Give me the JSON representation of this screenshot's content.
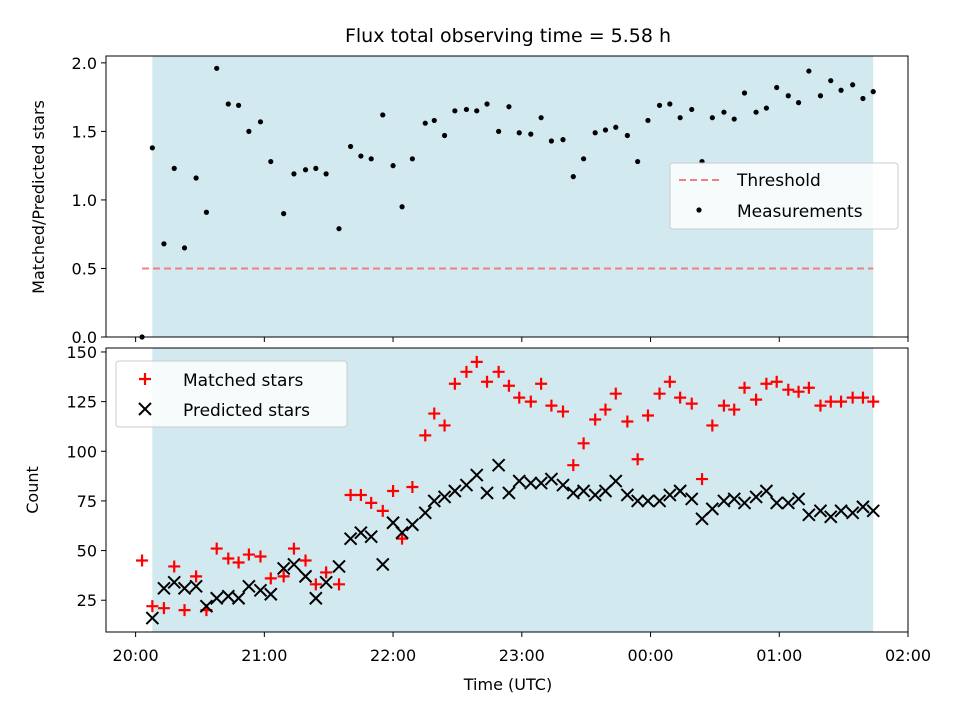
{
  "title": "Flux total observing time = 5.58 h",
  "chart_data": [
    {
      "type": "scatter",
      "panel": "top",
      "ylabel": "Matched/Predicted stars",
      "ylim": [
        0,
        2.05
      ],
      "yticks": [
        0,
        0.5,
        1.0,
        1.5,
        2.0
      ],
      "ytick_labels": [
        "0.0",
        "0.5",
        "1.0",
        "1.5",
        "2.0"
      ],
      "shaded_span": [
        20.13,
        25.73
      ],
      "threshold": {
        "name": "Threshold",
        "y": 0.5,
        "x": [
          20.05,
          25.73
        ],
        "color": "#f08080"
      },
      "legend": {
        "placement": "center-right",
        "entries": [
          "Threshold",
          "Measurements"
        ]
      },
      "series": [
        {
          "name": "Measurements",
          "marker": "dot",
          "color": "#000000",
          "points": [
            [
              20.05,
              0.0
            ],
            [
              20.13,
              1.38
            ],
            [
              20.22,
              0.68
            ],
            [
              20.3,
              1.23
            ],
            [
              20.38,
              0.65
            ],
            [
              20.47,
              1.16
            ],
            [
              20.55,
              0.91
            ],
            [
              20.63,
              1.96
            ],
            [
              20.72,
              1.7
            ],
            [
              20.8,
              1.69
            ],
            [
              20.88,
              1.5
            ],
            [
              20.97,
              1.57
            ],
            [
              21.05,
              1.28
            ],
            [
              21.15,
              0.9
            ],
            [
              21.23,
              1.19
            ],
            [
              21.32,
              1.22
            ],
            [
              21.4,
              1.23
            ],
            [
              21.48,
              1.19
            ],
            [
              21.58,
              0.79
            ],
            [
              21.67,
              1.39
            ],
            [
              21.75,
              1.32
            ],
            [
              21.83,
              1.3
            ],
            [
              21.92,
              1.62
            ],
            [
              22.0,
              1.25
            ],
            [
              22.07,
              0.95
            ],
            [
              22.15,
              1.3
            ],
            [
              22.25,
              1.56
            ],
            [
              22.32,
              1.58
            ],
            [
              22.4,
              1.47
            ],
            [
              22.48,
              1.65
            ],
            [
              22.57,
              1.66
            ],
            [
              22.65,
              1.65
            ],
            [
              22.73,
              1.7
            ],
            [
              22.82,
              1.5
            ],
            [
              22.9,
              1.68
            ],
            [
              22.98,
              1.49
            ],
            [
              23.07,
              1.48
            ],
            [
              23.15,
              1.6
            ],
            [
              23.23,
              1.43
            ],
            [
              23.32,
              1.44
            ],
            [
              23.4,
              1.17
            ],
            [
              23.48,
              1.3
            ],
            [
              23.57,
              1.49
            ],
            [
              23.65,
              1.51
            ],
            [
              23.73,
              1.53
            ],
            [
              23.82,
              1.47
            ],
            [
              23.9,
              1.28
            ],
            [
              23.98,
              1.58
            ],
            [
              24.07,
              1.69
            ],
            [
              24.15,
              1.7
            ],
            [
              24.23,
              1.6
            ],
            [
              24.32,
              1.66
            ],
            [
              24.4,
              1.28
            ],
            [
              24.48,
              1.6
            ],
            [
              24.57,
              1.64
            ],
            [
              24.65,
              1.59
            ],
            [
              24.73,
              1.78
            ],
            [
              24.82,
              1.64
            ],
            [
              24.9,
              1.67
            ],
            [
              24.98,
              1.82
            ],
            [
              25.07,
              1.76
            ],
            [
              25.15,
              1.71
            ],
            [
              25.23,
              1.94
            ],
            [
              25.32,
              1.76
            ],
            [
              25.4,
              1.87
            ],
            [
              25.48,
              1.8
            ],
            [
              25.57,
              1.84
            ],
            [
              25.65,
              1.74
            ],
            [
              25.73,
              1.79
            ]
          ]
        }
      ]
    },
    {
      "type": "scatter",
      "panel": "bottom",
      "xlabel": "Time (UTC)",
      "ylabel": "Count",
      "xlim": [
        19.77,
        26.0
      ],
      "ylim": [
        9,
        152
      ],
      "xticks": [
        20,
        21,
        22,
        23,
        24,
        25,
        26
      ],
      "xtick_labels": [
        "20:00",
        "21:00",
        "22:00",
        "23:00",
        "00:00",
        "01:00",
        "02:00"
      ],
      "yticks": [
        25,
        50,
        75,
        100,
        125,
        150
      ],
      "ytick_labels": [
        "25",
        "50",
        "75",
        "100",
        "125",
        "150"
      ],
      "shaded_span": [
        20.13,
        25.73
      ],
      "legend": {
        "placement": "upper-left",
        "entries": [
          "Matched stars",
          "Predicted stars"
        ]
      },
      "series": [
        {
          "name": "Matched stars",
          "marker": "plus",
          "color": "#ff0000",
          "points": [
            [
              20.05,
              45
            ],
            [
              20.13,
              22
            ],
            [
              20.22,
              21
            ],
            [
              20.3,
              42
            ],
            [
              20.38,
              20
            ],
            [
              20.47,
              37
            ],
            [
              20.55,
              20
            ],
            [
              20.63,
              51
            ],
            [
              20.72,
              46
            ],
            [
              20.8,
              44
            ],
            [
              20.88,
              48
            ],
            [
              20.97,
              47
            ],
            [
              21.05,
              36
            ],
            [
              21.15,
              37
            ],
            [
              21.23,
              51
            ],
            [
              21.32,
              45
            ],
            [
              21.4,
              33
            ],
            [
              21.48,
              39
            ],
            [
              21.58,
              33
            ],
            [
              21.67,
              78
            ],
            [
              21.75,
              78
            ],
            [
              21.83,
              74
            ],
            [
              21.92,
              70
            ],
            [
              22.0,
              80
            ],
            [
              22.07,
              56
            ],
            [
              22.15,
              82
            ],
            [
              22.25,
              108
            ],
            [
              22.32,
              119
            ],
            [
              22.4,
              113
            ],
            [
              22.48,
              134
            ],
            [
              22.57,
              140
            ],
            [
              22.65,
              145
            ],
            [
              22.73,
              135
            ],
            [
              22.82,
              140
            ],
            [
              22.9,
              133
            ],
            [
              22.98,
              127
            ],
            [
              23.07,
              125
            ],
            [
              23.15,
              134
            ],
            [
              23.23,
              123
            ],
            [
              23.32,
              120
            ],
            [
              23.4,
              93
            ],
            [
              23.48,
              104
            ],
            [
              23.57,
              116
            ],
            [
              23.65,
              121
            ],
            [
              23.73,
              129
            ],
            [
              23.82,
              115
            ],
            [
              23.9,
              96
            ],
            [
              23.98,
              118
            ],
            [
              24.07,
              129
            ],
            [
              24.15,
              135
            ],
            [
              24.23,
              127
            ],
            [
              24.32,
              124
            ],
            [
              24.4,
              86
            ],
            [
              24.48,
              113
            ],
            [
              24.57,
              123
            ],
            [
              24.65,
              121
            ],
            [
              24.73,
              132
            ],
            [
              24.82,
              126
            ],
            [
              24.9,
              134
            ],
            [
              24.98,
              135
            ],
            [
              25.07,
              131
            ],
            [
              25.15,
              130
            ],
            [
              25.23,
              132
            ],
            [
              25.32,
              123
            ],
            [
              25.4,
              125
            ],
            [
              25.48,
              125
            ],
            [
              25.57,
              127
            ],
            [
              25.65,
              127
            ],
            [
              25.73,
              125
            ]
          ]
        },
        {
          "name": "Predicted stars",
          "marker": "x",
          "color": "#000000",
          "points": [
            [
              20.13,
              16
            ],
            [
              20.22,
              31
            ],
            [
              20.3,
              34
            ],
            [
              20.38,
              31
            ],
            [
              20.47,
              32
            ],
            [
              20.55,
              22
            ],
            [
              20.63,
              26
            ],
            [
              20.72,
              27
            ],
            [
              20.8,
              26
            ],
            [
              20.88,
              32
            ],
            [
              20.97,
              30
            ],
            [
              21.05,
              28
            ],
            [
              21.15,
              41
            ],
            [
              21.23,
              43
            ],
            [
              21.32,
              37
            ],
            [
              21.4,
              26
            ],
            [
              21.48,
              34
            ],
            [
              21.58,
              42
            ],
            [
              21.67,
              56
            ],
            [
              21.75,
              59
            ],
            [
              21.83,
              57
            ],
            [
              21.92,
              43
            ],
            [
              22.0,
              64
            ],
            [
              22.07,
              59
            ],
            [
              22.15,
              63
            ],
            [
              22.25,
              69
            ],
            [
              22.32,
              75
            ],
            [
              22.4,
              77
            ],
            [
              22.48,
              80
            ],
            [
              22.57,
              83
            ],
            [
              22.65,
              88
            ],
            [
              22.73,
              79
            ],
            [
              22.82,
              93
            ],
            [
              22.9,
              79
            ],
            [
              22.98,
              85
            ],
            [
              23.07,
              84
            ],
            [
              23.15,
              84
            ],
            [
              23.23,
              86
            ],
            [
              23.32,
              83
            ],
            [
              23.4,
              79
            ],
            [
              23.48,
              80
            ],
            [
              23.57,
              78
            ],
            [
              23.65,
              80
            ],
            [
              23.73,
              85
            ],
            [
              23.82,
              78
            ],
            [
              23.9,
              75
            ],
            [
              23.98,
              75
            ],
            [
              24.07,
              75
            ],
            [
              24.15,
              78
            ],
            [
              24.23,
              80
            ],
            [
              24.32,
              76
            ],
            [
              24.4,
              66
            ],
            [
              24.48,
              71
            ],
            [
              24.57,
              75
            ],
            [
              24.65,
              76
            ],
            [
              24.73,
              74
            ],
            [
              24.82,
              77
            ],
            [
              24.9,
              80
            ],
            [
              24.98,
              74
            ],
            [
              25.07,
              74
            ],
            [
              25.15,
              76
            ],
            [
              25.23,
              68
            ],
            [
              25.32,
              70
            ],
            [
              25.4,
              67
            ],
            [
              25.48,
              70
            ],
            [
              25.57,
              69
            ],
            [
              25.65,
              72
            ],
            [
              25.73,
              70
            ]
          ]
        }
      ]
    }
  ],
  "colors": {
    "span": "#d2e9f0",
    "threshold": "#f08080",
    "matched": "#ff0000",
    "predicted": "#000000"
  }
}
